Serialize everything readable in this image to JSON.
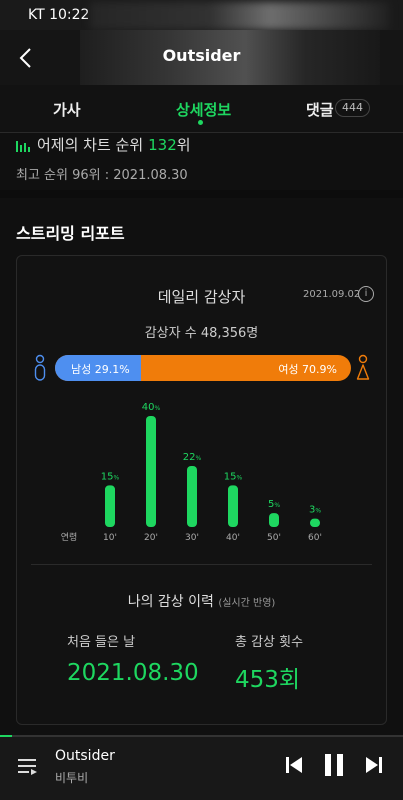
{
  "status": {
    "carrier_time": "KT 10:22"
  },
  "header": {
    "title": "Outsider",
    "back_icon": "chevron-left-icon"
  },
  "tabs": [
    {
      "label": "가사"
    },
    {
      "label": "상세정보",
      "active": true
    },
    {
      "label": "댓글",
      "count": "444"
    }
  ],
  "rank": {
    "label": "어제의 차트 순위",
    "value": "132",
    "suffix": "위",
    "best": "최고 순위 96위 : 2021.08.30"
  },
  "report": {
    "section_title": "스트리밍 리포트",
    "daily_title": "데일리 감상자",
    "daily_date": "2021.09.02",
    "listener_count": "감상자 수 48,356명",
    "gender": {
      "male_label": "남성 29.1%",
      "female_label": "여성 70.9%",
      "male_share": 29.1,
      "male_color": "#4e8ff0",
      "female_color": "#f07c0a"
    },
    "age_axis_label": "연령",
    "accent_color": "#1ed760"
  },
  "chart_data": {
    "type": "bar",
    "categories": [
      "10'",
      "20'",
      "30'",
      "40'",
      "50'",
      "60'"
    ],
    "values": [
      15,
      40,
      22,
      15,
      5,
      3
    ],
    "value_unit": "%",
    "xlabel": "연령",
    "ylabel": "",
    "ylim": [
      0,
      40
    ],
    "grid": false
  },
  "history": {
    "title": "나의 감상 이력",
    "subtitle": "(실시간 반영)",
    "first_label": "처음 들은 날",
    "first_value": "2021.08.30",
    "total_label": "총 감상 횟수",
    "total_value": "453회"
  },
  "player": {
    "title": "Outsider",
    "artist": "비투비",
    "progress": 0.03
  }
}
